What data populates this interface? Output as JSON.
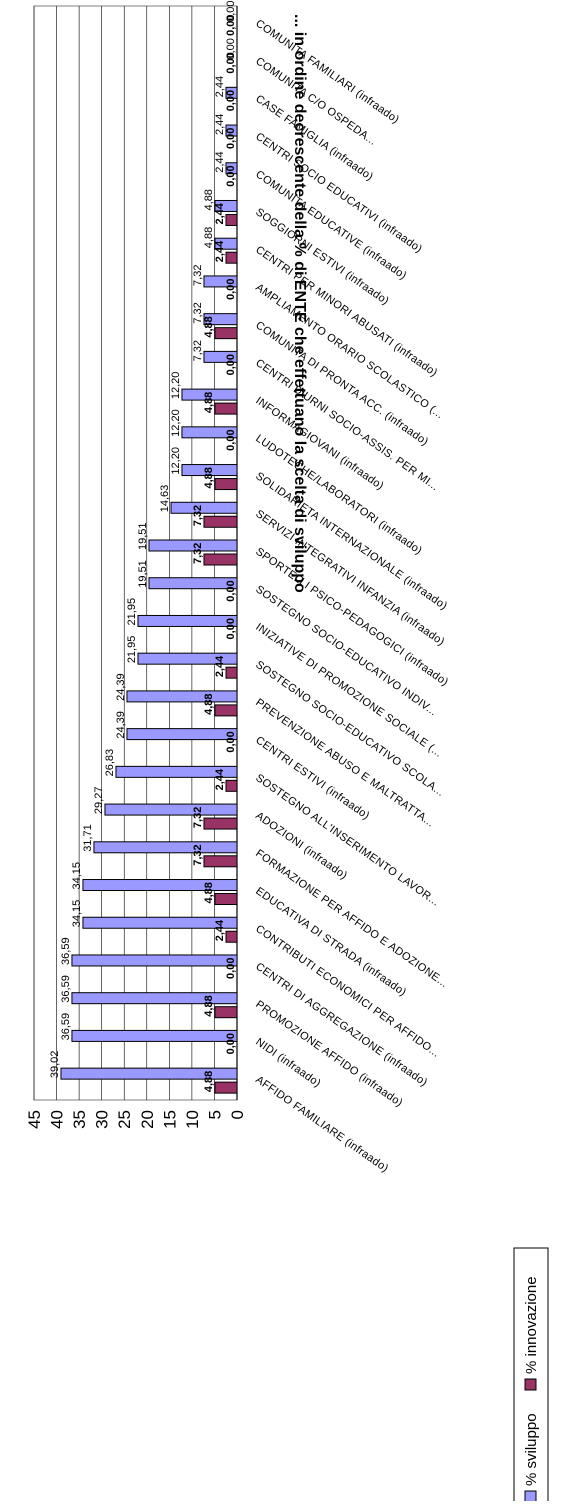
{
  "chart_data": {
    "type": "bar",
    "title": "... in ordine decrescente della % di ENTE che effettuano la scelta di sviluppo",
    "ylim": [
      0,
      45
    ],
    "yticks": [
      0,
      5,
      10,
      15,
      20,
      25,
      30,
      35,
      40,
      45
    ],
    "grid": true,
    "legend_position": "bottom",
    "categories": [
      "AFFIDO FAMILIARE (infraado)",
      "NIDI (infraado)",
      "PROMOZIONE AFFIDO (infraado)",
      "CENTRI DI AGGREGAZIONE (infraado)",
      "CONTRIBUTI ECONOMICI PER AFFIDO...",
      "EDUCATIVA DI STRADA (infraado)",
      "FORMAZIONE PER AFFIDO E ADOZIONE...",
      "ADOZIONI (infraado)",
      "SOSTEGNO ALL'INSERIMENTO LAVOR...",
      "CENTRI ESTIVI (infraado)",
      "PREVENZIONE ABUSO E MALTRATTA...",
      "SOSTEGNO SOCIO-EDUCATIVO SCOLA...",
      "INIZIATIVE DI PROMOZIONE SOCIALE (...",
      "SOSTEGNO SOCIO-EDUCATIVO INDIV...",
      "SPORTELLI PSICO-PEDAGOGICI (infraado)",
      "SERVIZI INTEGRATIVI INFANZIA (infraado)",
      "SOLIDARIETA INTERNAZIONALE (infraado)",
      "LUDOTECHE/LABORATORI (infraado)",
      "INFORMAGIOVANI (infraado)",
      "CENTRI DIURNI SOCIO-ASSIS. PER MI...",
      "COMUNITA DI PRONTA ACC. (infraado)",
      "AMPLIAMENTO ORARIO SCOLASTICO (...",
      "CENTRI PER MINORI ABUSATI (infraado)",
      "SOGGIORNI ESTIVI (infraado)",
      "COMUNITA EDUCATIVE (infraado)",
      "CENTRI SOCIO EDUCATIVI (infraado)",
      "CASE FAMIGLIA (infraado)",
      "COMUNITA C/O OSPEDA...",
      "COMUNITA FAMILIARI (infraado)"
    ],
    "series": [
      {
        "name": "% sviluppo",
        "color": "#9999ff",
        "values": [
          39.02,
          36.59,
          36.59,
          36.59,
          34.15,
          34.15,
          31.71,
          29.27,
          26.83,
          24.39,
          24.39,
          21.95,
          21.95,
          19.51,
          19.51,
          14.63,
          12.2,
          12.2,
          12.2,
          7.32,
          7.32,
          7.32,
          4.88,
          4.88,
          2.44,
          2.44,
          2.44,
          0,
          0
        ],
        "labels": [
          "39,02",
          "36,59",
          "36,59",
          "36,59",
          "34,15",
          "34,15",
          "31,71",
          "29,27",
          "26,83",
          "24,39",
          "24,39",
          "21,95",
          "21,95",
          "19,51",
          "19,51",
          "14,63",
          "12,20",
          "12,20",
          "12,20",
          "7,32",
          "7,32",
          "7,32",
          "4,88",
          "4,88",
          "2,44",
          "2,44",
          "2,44",
          "0,00",
          "0,00"
        ]
      },
      {
        "name": "% innovazione",
        "color": "#993366",
        "values": [
          4.88,
          0,
          4.88,
          0,
          2.44,
          4.88,
          7.32,
          7.32,
          2.44,
          0,
          4.88,
          2.44,
          0,
          0,
          7.32,
          7.32,
          4.88,
          0,
          4.88,
          0,
          4.88,
          0,
          2.44,
          2.44,
          0,
          0,
          0,
          0,
          0
        ],
        "labels": [
          "4,88",
          "0,00",
          "4,88",
          "0,00",
          "2,44",
          "4,88",
          "7,32",
          "7,32",
          "2,44",
          "0,00",
          "4,88",
          "2,44",
          "0,00",
          "0,00",
          "7,32",
          "7,32",
          "4,88",
          "0,00",
          "4,88",
          "0,00",
          "4,88",
          "0,00",
          "2,44",
          "2,44",
          "0,00",
          "0,00",
          "0,00",
          "0,00",
          "0,00"
        ]
      }
    ]
  }
}
